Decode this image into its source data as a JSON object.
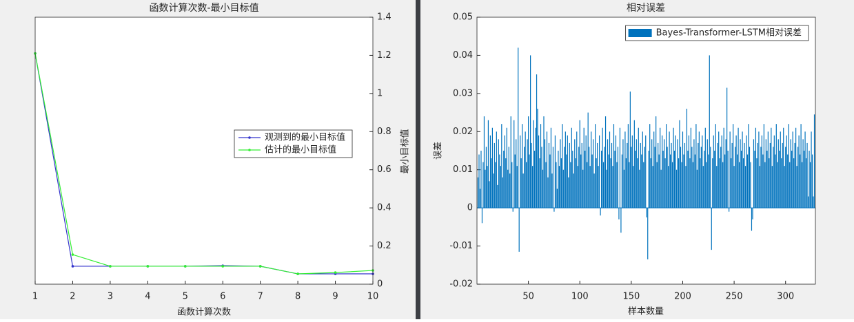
{
  "chart_data": [
    {
      "type": "line",
      "title": "函数计算次数-最小目标值",
      "xlabel": "函数计算次数",
      "ylabel": "最小目标值",
      "x": [
        1,
        2,
        3,
        4,
        5,
        6,
        7,
        8,
        9,
        10
      ],
      "xlim": [
        1,
        10
      ],
      "xticks": [
        1,
        2,
        3,
        4,
        5,
        6,
        7,
        8,
        9,
        10
      ],
      "ylim": [
        0,
        1.4
      ],
      "yticks": [
        0,
        0.2,
        0.4,
        0.6,
        0.8,
        1,
        1.2,
        1.4
      ],
      "y_axis_position": "right",
      "legend": "east",
      "series": [
        {
          "name": "观测到的最小目标值",
          "color": "#3333cc",
          "values": [
            1.21,
            0.094,
            0.094,
            0.094,
            0.094,
            0.097,
            0.094,
            0.054,
            0.054,
            0.054
          ]
        },
        {
          "name": "估计的最小目标值",
          "color": "#33ee33",
          "values": [
            1.21,
            0.155,
            0.094,
            0.094,
            0.094,
            0.094,
            0.094,
            0.054,
            0.061,
            0.072
          ]
        }
      ]
    },
    {
      "type": "bar",
      "title": "相对误差",
      "xlabel": "样本数量",
      "ylabel": "误差",
      "x": [
        1,
        2,
        3,
        4,
        5,
        6,
        7,
        8,
        9,
        10,
        11,
        12,
        13,
        14,
        15,
        16,
        17,
        18,
        19,
        20,
        21,
        22,
        23,
        24,
        25,
        26,
        27,
        28,
        29,
        30,
        31,
        32,
        33,
        34,
        35,
        36,
        37,
        38,
        39,
        40,
        41,
        42,
        43,
        44,
        45,
        46,
        47,
        48,
        49,
        50,
        51,
        52,
        53,
        54,
        55,
        56,
        57,
        58,
        59,
        60,
        61,
        62,
        63,
        64,
        65,
        66,
        67,
        68,
        69,
        70,
        71,
        72,
        73,
        74,
        75,
        76,
        77,
        78,
        79,
        80,
        81,
        82,
        83,
        84,
        85,
        86,
        87,
        88,
        89,
        90,
        91,
        92,
        93,
        94,
        95,
        96,
        97,
        98,
        99,
        100,
        101,
        102,
        103,
        104,
        105,
        106,
        107,
        108,
        109,
        110,
        111,
        112,
        113,
        114,
        115,
        116,
        117,
        118,
        119,
        120,
        121,
        122,
        123,
        124,
        125,
        126,
        127,
        128,
        129,
        130,
        131,
        132,
        133,
        134,
        135,
        136,
        137,
        138,
        139,
        140,
        141,
        142,
        143,
        144,
        145,
        146,
        147,
        148,
        149,
        150,
        151,
        152,
        153,
        154,
        155,
        156,
        157,
        158,
        159,
        160,
        161,
        162,
        163,
        164,
        165,
        166,
        167,
        168,
        169,
        170,
        171,
        172,
        173,
        174,
        175,
        176,
        177,
        178,
        179,
        180,
        181,
        182,
        183,
        184,
        185,
        186,
        187,
        188,
        189,
        190,
        191,
        192,
        193,
        194,
        195,
        196,
        197,
        198,
        199,
        200,
        201,
        202,
        203,
        204,
        205,
        206,
        207,
        208,
        209,
        210,
        211,
        212,
        213,
        214,
        215,
        216,
        217,
        218,
        219,
        220,
        221,
        222,
        223,
        224,
        225,
        226,
        227,
        228,
        229,
        230,
        231,
        232,
        233,
        234,
        235,
        236,
        237,
        238,
        239,
        240,
        241,
        242,
        243,
        244,
        245,
        246,
        247,
        248,
        249,
        250,
        251,
        252,
        253,
        254,
        255,
        256,
        257,
        258,
        259,
        260,
        261,
        262,
        263,
        264,
        265,
        266,
        267,
        268,
        269,
        270,
        271,
        272,
        273,
        274,
        275,
        276,
        277,
        278,
        279,
        280,
        281,
        282,
        283,
        284,
        285,
        286,
        287,
        288,
        289,
        290,
        291,
        292,
        293,
        294,
        295,
        296,
        297,
        298,
        299,
        300,
        301,
        302,
        303,
        304,
        305,
        306,
        307,
        308,
        309,
        310,
        311,
        312,
        313,
        314,
        315,
        316,
        317,
        318,
        319,
        320,
        321,
        322,
        323,
        324,
        325,
        326,
        327,
        328
      ],
      "xlim": [
        0,
        329
      ],
      "xticks": [
        50,
        100,
        150,
        200,
        250,
        300
      ],
      "ylim": [
        -0.02,
        0.05
      ],
      "yticks": [
        -0.02,
        -0.01,
        0,
        0.01,
        0.02,
        0.03,
        0.04,
        0.05
      ],
      "y_axis_position": "left",
      "legend": "northeast",
      "series": [
        {
          "name": "Bayes-Transformer-LSTM相对误差",
          "color": "#0072bd",
          "values": [
            0.008,
            0.014,
            0.005,
            0.015,
            -0.004,
            0.012,
            0.024,
            0.01,
            0.016,
            0.011,
            0.023,
            0.007,
            0.019,
            0.013,
            0.021,
            0.009,
            0.017,
            0.012,
            0.02,
            0.006,
            0.018,
            0.014,
            0.011,
            0.022,
            0.008,
            0.015,
            0.019,
            0.013,
            0.021,
            0.01,
            0.016,
            0.009,
            0.024,
            0.012,
            -0.001,
            0.023,
            0.014,
            0.018,
            0.011,
            0.042,
            -0.0115,
            0.019,
            0.013,
            0.022,
            0.009,
            0.016,
            0.02,
            0.012,
            0.018,
            0.024,
            0.014,
            0.04,
            0.017,
            0.011,
            0.023,
            0.015,
            0.021,
            0.035,
            0.026,
            0.019,
            0.013,
            0.022,
            0.016,
            0.01,
            0.024,
            0.018,
            0.012,
            0.02,
            0.008,
            0.017,
            0.014,
            0.021,
            0.009,
            0.016,
            -0.001,
            0.019,
            0.012,
            0.005,
            0.015,
            0.011,
            0.018,
            0.013,
            0.022,
            0.01,
            0.016,
            0.02,
            0.014,
            0.019,
            0.008,
            0.017,
            0.012,
            0.021,
            0.015,
            0.009,
            0.018,
            0.013,
            0.02,
            0.011,
            0.016,
            0.023,
            0.014,
            0.017,
            0.01,
            0.021,
            0.015,
            0.019,
            0.012,
            0.025,
            0.016,
            0.011,
            0.02,
            0.014,
            0.018,
            0.009,
            0.022,
            0.013,
            0.017,
            0.011,
            0.019,
            -0.002,
            0.015,
            0.021,
            0.012,
            0.016,
            0.024,
            0.01,
            0.018,
            0.014,
            0.02,
            0.013,
            0.017,
            0.011,
            0.022,
            0.015,
            0.019,
            0.012,
            0.016,
            -0.003,
            0.021,
            -0.0065,
            0.014,
            0.018,
            0.01,
            0.02,
            0.013,
            0.017,
            0.022,
            0.012,
            0.0305,
            0.016,
            0.019,
            0.011,
            0.023,
            0.015,
            0.018,
            0.013,
            0.021,
            0.01,
            0.017,
            0.014,
            0.02,
            0.012,
            0.016,
            0.019,
            -0.0025,
            -0.0135,
            0.015,
            0.022,
            0.013,
            0.018,
            0.011,
            0.02,
            0.016,
            0.024,
            0.012,
            0.017,
            0.014,
            0.021,
            0.01,
            0.019,
            0.015,
            0.018,
            0.013,
            0.022,
            0.016,
            0.011,
            0.02,
            0.014,
            0.017,
            0.012,
            0.021,
            0.015,
            0.019,
            0.01,
            0.018,
            0.013,
            0.023,
            0.016,
            0.012,
            0.02,
            0.014,
            0.017,
            0.011,
            0.026,
            0.015,
            0.019,
            0.013,
            0.021,
            0.016,
            0.012,
            0.018,
            0.014,
            0.022,
            0.01,
            0.017,
            0.02,
            0.013,
            0.016,
            0.019,
            0.011,
            0.015,
            0.021,
            0.012,
            0.018,
            0.014,
            0.04,
            0.016,
            -0.011,
            0.013,
            0.019,
            0.015,
            0.022,
            0.011,
            0.017,
            0.02,
            0.013,
            0.016,
            0.019,
            0.012,
            0.021,
            0.014,
            0.018,
            0.0315,
            0.015,
            -0.001,
            0.02,
            0.013,
            0.017,
            0.022,
            0.011,
            0.016,
            0.019,
            0.014,
            0.021,
            0.012,
            0.018,
            0.015,
            0.02,
            0.013,
            0.017,
            0.011,
            0.019,
            0.014,
            0.022,
            0.016,
            0.012,
            -0.006,
            -0.003,
            0.018,
            0.015,
            0.021,
            0.013,
            0.017,
            0.02,
            0.011,
            0.016,
            0.019,
            0.014,
            0.022,
            0.012,
            0.018,
            0.015,
            0.02,
            0.013,
            0.017,
            0.021,
            0.011,
            0.016,
            0.019,
            0.014,
            0.022,
            0.012,
            0.018,
            0.015,
            0.02,
            0.013,
            0.017,
            0.021,
            0.011,
            0.016,
            0.019,
            0.014,
            0.022,
            0.012,
            0.018,
            0.015,
            0.02,
            0.013,
            0.017,
            0.021,
            0.011,
            0.016,
            0.019,
            0.014,
            0.022,
            0.012,
            0.018,
            0.015,
            0.02,
            0.013,
            0.017,
            0.003,
            0.015,
            0.012,
            0.02,
            0.014,
            0.003,
            0.0245
          ]
        }
      ]
    }
  ]
}
